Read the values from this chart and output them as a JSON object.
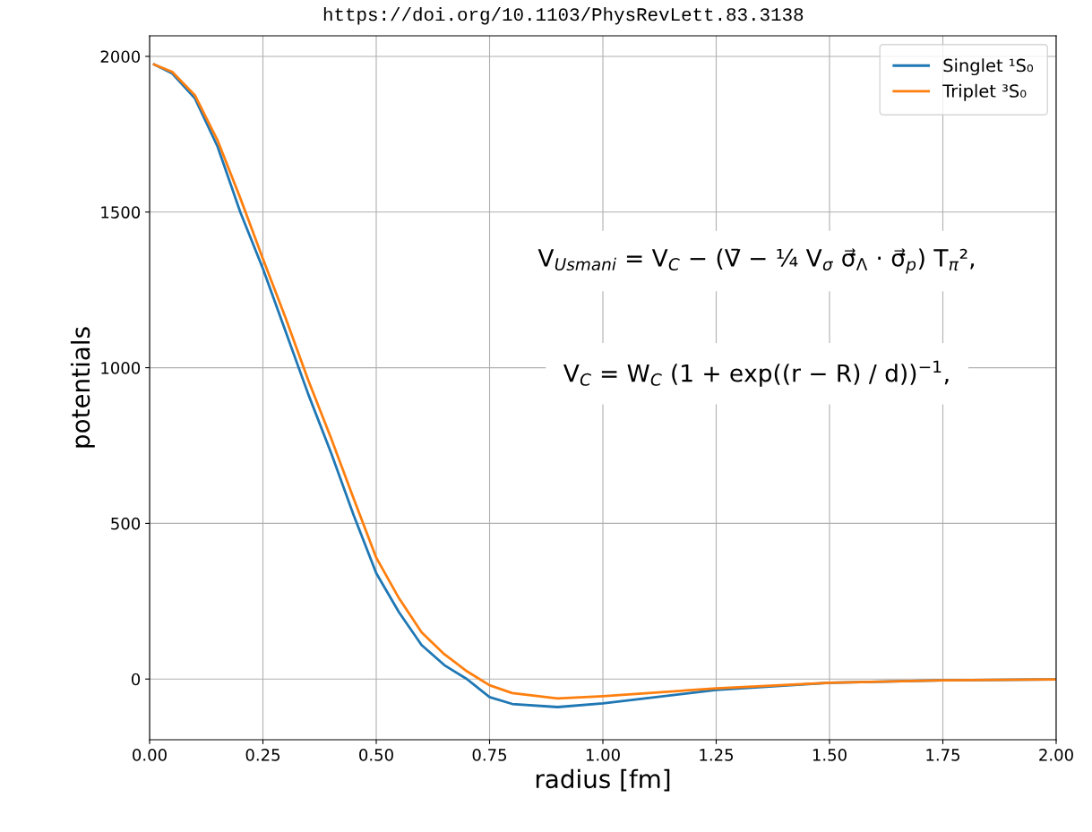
{
  "chart_data": {
    "type": "line",
    "xlabel": "radius [fm]",
    "ylabel": "potentials",
    "annotations": [
      "https://doi.org/10.1103/PhysRevLett.83.3138",
      "V$_{Usmani}$ = V$_{C}$ − (V̄ − ¼ V$_{σ}$ σ⃗$_{Λ}$ · σ⃗$_{p}$) T$_{π}$²,",
      "V$_{C}$ = W$_{C}$ (1 + exp((r − R) / d))$^{−1}$,"
    ],
    "xlim": [
      0,
      2.0
    ],
    "ylim": [
      -195,
      2066
    ],
    "xticks": [
      {
        "value": 0,
        "label": "0.00"
      },
      {
        "value": 0.25,
        "label": "0.25"
      },
      {
        "value": 0.5,
        "label": "0.50"
      },
      {
        "value": 0.75,
        "label": "0.75"
      },
      {
        "value": 1.0,
        "label": "1.00"
      },
      {
        "value": 1.25,
        "label": "1.25"
      },
      {
        "value": 1.5,
        "label": "1.50"
      },
      {
        "value": 1.75,
        "label": "1.75"
      },
      {
        "value": 2.0,
        "label": "2.00"
      }
    ],
    "yticks": [
      0,
      500,
      1000,
      1500,
      2000
    ],
    "grid": true,
    "legend": "top right",
    "x": [
      0.01,
      0.05,
      0.1,
      0.15,
      0.2,
      0.25,
      0.3,
      0.35,
      0.4,
      0.45,
      0.5,
      0.55,
      0.6,
      0.65,
      0.7,
      0.75,
      0.8,
      0.9,
      1.0,
      1.25,
      1.5,
      1.75,
      2.0
    ],
    "series": [
      {
        "name": "Singlet ¹S₀",
        "color": "#1f77b4",
        "values": [
          1974,
          1945,
          1865,
          1710,
          1500,
          1318,
          1117,
          915,
          728,
          527,
          340,
          215,
          109,
          45,
          0,
          -58,
          -80,
          -90,
          -78,
          -35,
          -12,
          -4,
          -1
        ]
      },
      {
        "name": "Triplet ³S₀",
        "color": "#ff7f0e",
        "values": [
          1974,
          1950,
          1875,
          1730,
          1545,
          1350,
          1160,
          960,
          775,
          580,
          390,
          260,
          150,
          80,
          25,
          -20,
          -45,
          -62,
          -55,
          -30,
          -12,
          -4,
          -1
        ]
      }
    ]
  }
}
